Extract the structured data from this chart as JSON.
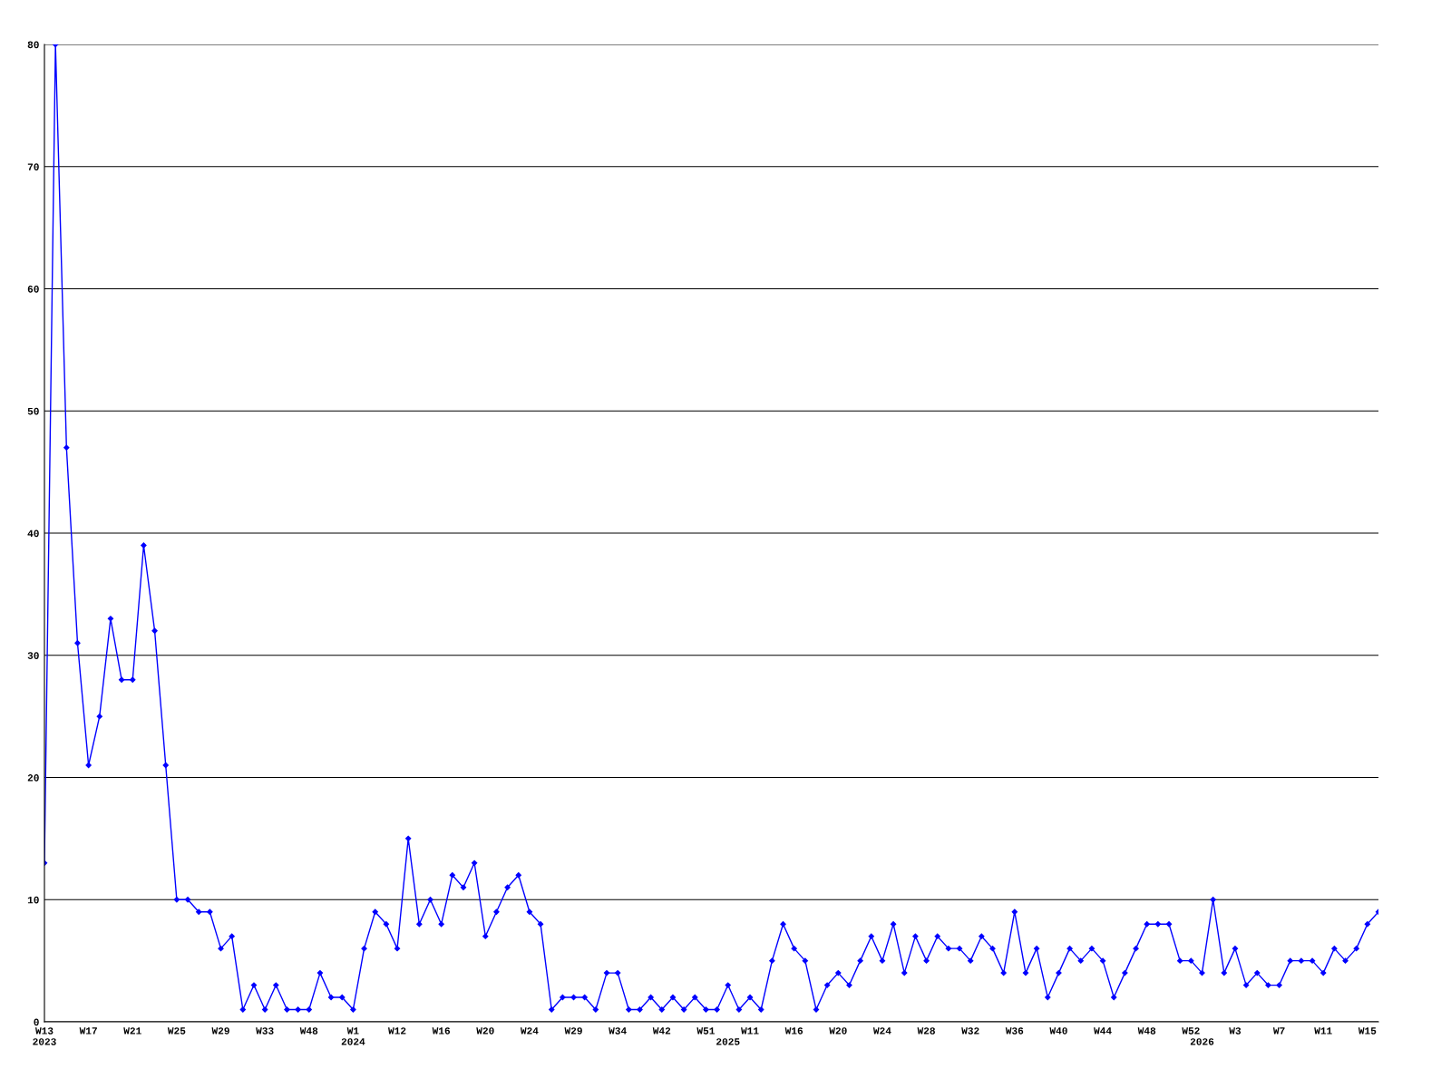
{
  "chart_data": {
    "type": "line",
    "categories": [
      "W13\n2023",
      null,
      null,
      null,
      "W17",
      null,
      null,
      null,
      "W21",
      null,
      null,
      null,
      "W25",
      null,
      null,
      null,
      "W29",
      null,
      null,
      null,
      "W33",
      null,
      null,
      null,
      "W48",
      null,
      null,
      null,
      "W1\n2024",
      null,
      null,
      null,
      "W12",
      null,
      null,
      null,
      "W16",
      null,
      null,
      null,
      "W20",
      null,
      null,
      null,
      "W24",
      null,
      null,
      null,
      "W29",
      null,
      null,
      null,
      "W34",
      null,
      null,
      null,
      "W42",
      null,
      null,
      null,
      "W51",
      null,
      "\n2025",
      null,
      "W11",
      null,
      null,
      null,
      "W16",
      null,
      null,
      null,
      "W20",
      null,
      null,
      null,
      "W24",
      null,
      null,
      null,
      "W28",
      null,
      null,
      null,
      "W32",
      null,
      null,
      null,
      "W36",
      null,
      null,
      null,
      "W40",
      null,
      null,
      null,
      "W44",
      null,
      null,
      null,
      "W48",
      null,
      null,
      null,
      "W52",
      "\n2026",
      null,
      null,
      "W3",
      null,
      null,
      null,
      "W7",
      null,
      null,
      null,
      "W11",
      null,
      null,
      null,
      "W15",
      null
    ],
    "series": [
      {
        "color": "#0000ff",
        "values": [
          13,
          80,
          47,
          31,
          21,
          25,
          33,
          28,
          28,
          39,
          32,
          21,
          10,
          10,
          9,
          9,
          6,
          7,
          1,
          3,
          1,
          3,
          1,
          1,
          1,
          4,
          2,
          2,
          1,
          6,
          9,
          8,
          6,
          15,
          8,
          10,
          8,
          12,
          11,
          13,
          7,
          9,
          11,
          12,
          9,
          8,
          1,
          2,
          2,
          2,
          1,
          4,
          4,
          1,
          1,
          2,
          1,
          2,
          1,
          2,
          1,
          1,
          3,
          1,
          2,
          1,
          5,
          8,
          6,
          5,
          1,
          3,
          4,
          3,
          5,
          7,
          5,
          8,
          4,
          7,
          5,
          7,
          6,
          6,
          5,
          7,
          6,
          4,
          9,
          4,
          6,
          2,
          4,
          6,
          5,
          6,
          5,
          2,
          4,
          6,
          8,
          8,
          8,
          5,
          5,
          4,
          10,
          4,
          6,
          3,
          4,
          3,
          3,
          5,
          5,
          5,
          4,
          6,
          5,
          6,
          8,
          9
        ]
      }
    ],
    "ylim": [
      0,
      80
    ],
    "yticks": [
      0,
      10,
      20,
      30,
      40,
      50,
      60,
      70,
      80
    ],
    "grid": "y",
    "marker": "diamond",
    "line_style": "solid"
  }
}
